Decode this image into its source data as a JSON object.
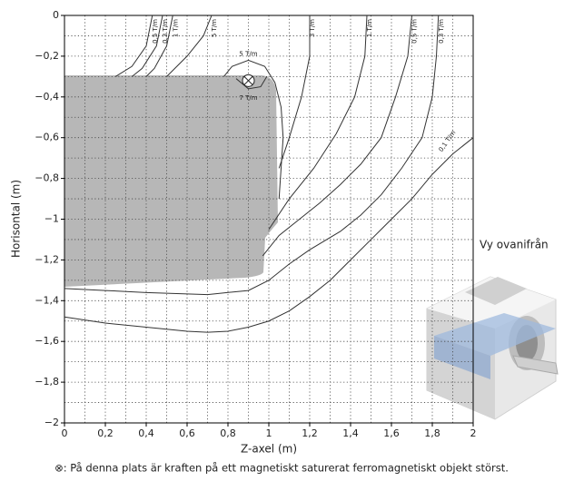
{
  "chart_data": {
    "type": "contour",
    "xlabel": "Z-axel (m)",
    "ylabel": "Horisontal (m)",
    "side_note": "Vy ovanifrån",
    "footnote": "⊗: På denna plats är kraften på ett magnetiskt saturerat ferromagnetiskt objekt störst.",
    "xlim": [
      0,
      2
    ],
    "ylim": [
      -2,
      0
    ],
    "xticks": [
      0,
      {
        "value": 0.2,
        "label": "0,2"
      },
      {
        "value": 0.4,
        "label": "0,4"
      },
      {
        "value": 0.6,
        "label": "0,6"
      },
      {
        "value": 0.8,
        "label": "0,8"
      },
      1,
      {
        "value": 1.2,
        "label": "1,2"
      },
      {
        "value": 1.4,
        "label": "1,4"
      },
      {
        "value": 1.6,
        "label": "1,6"
      },
      {
        "value": 1.8,
        "label": "1,8"
      },
      2
    ],
    "yticks": [
      0,
      {
        "value": -0.2,
        "label": "−0,2"
      },
      {
        "value": -0.4,
        "label": "−0,4"
      },
      {
        "value": -0.6,
        "label": "−0,6"
      },
      {
        "value": -0.8,
        "label": "−0,8"
      },
      {
        "value": -1,
        "label": "−1"
      },
      {
        "value": -1.2,
        "label": "−1,2"
      },
      {
        "value": -1.4,
        "label": "−1,4"
      },
      {
        "value": -1.6,
        "label": "−1,6"
      },
      {
        "value": -1.8,
        "label": "−1,8"
      },
      {
        "value": -2,
        "label": "−2"
      }
    ],
    "grid": true,
    "color": "#333333",
    "marker": {
      "x": 0.9,
      "y": -0.32
    },
    "series": [
      {
        "name": "0,5 T/m",
        "x": [
          0.43,
          0.4,
          0.33,
          0.25
        ],
        "y": [
          0,
          -0.15,
          -0.25,
          -0.3
        ]
      },
      {
        "name": "0,3 T/m",
        "x": [
          0.48,
          0.45,
          0.38,
          0.33
        ],
        "y": [
          0,
          -0.15,
          -0.26,
          -0.3
        ]
      },
      {
        "name": "1 T/m",
        "x": [
          0.53,
          0.5,
          0.44,
          0.4
        ],
        "y": [
          0,
          -0.15,
          -0.26,
          -0.3
        ]
      },
      {
        "name": "5 T/m",
        "x": [
          0.72,
          0.68,
          0.6,
          0.5
        ],
        "y": [
          0,
          -0.1,
          -0.2,
          -0.3
        ]
      },
      {
        "name": "5 T/m",
        "x": [
          0.78,
          0.82,
          0.9,
          0.98,
          1.03,
          1.06,
          1.07,
          1.06,
          1.05
        ],
        "y": [
          -0.3,
          -0.25,
          -0.22,
          -0.25,
          -0.33,
          -0.45,
          -0.6,
          -0.75,
          -0.9
        ]
      },
      {
        "name": "7 T/m",
        "x": [
          0.84,
          0.9,
          0.96,
          0.99
        ],
        "y": [
          -0.31,
          -0.36,
          -0.35,
          -0.3
        ]
      },
      {
        "name": "3 T/m",
        "x": [
          1.2,
          1.2,
          1.16,
          1.1,
          1.05
        ],
        "y": [
          0,
          -0.2,
          -0.4,
          -0.6,
          -0.75
        ]
      },
      {
        "name": "1 T/m",
        "x": [
          1.48,
          1.47,
          1.42,
          1.33,
          1.22,
          1.1,
          1.0
        ],
        "y": [
          0,
          -0.2,
          -0.4,
          -0.58,
          -0.75,
          -0.9,
          -1.05
        ]
      },
      {
        "name": "0,5 T/m",
        "x": [
          1.7,
          1.68,
          1.62,
          1.55,
          1.45,
          1.35,
          1.25,
          1.15,
          1.05,
          0.97
        ],
        "y": [
          0,
          -0.2,
          -0.4,
          -0.6,
          -0.73,
          -0.83,
          -0.92,
          -1.0,
          -1.08,
          -1.18
        ]
      },
      {
        "name": "0,3 T/m",
        "x": [
          1.83,
          1.82,
          1.8,
          1.75,
          1.65,
          1.55,
          1.45,
          1.35,
          1.2,
          1.1,
          1.0,
          0.9,
          0.7,
          0.4,
          0.2,
          0
        ],
        "y": [
          0,
          -0.2,
          -0.4,
          -0.6,
          -0.75,
          -0.88,
          -0.98,
          -1.06,
          -1.15,
          -1.22,
          -1.3,
          -1.35,
          -1.37,
          -1.36,
          -1.35,
          -1.34
        ]
      },
      {
        "name": "0,1 T/m",
        "x": [
          2.0,
          1.9,
          1.8,
          1.7,
          1.6,
          1.5,
          1.4,
          1.3,
          1.2,
          1.1,
          1.0,
          0.9,
          0.8,
          0.7,
          0.6,
          0.4,
          0.2,
          0
        ],
        "y": [
          -0.6,
          -0.68,
          -0.78,
          -0.9,
          -1.0,
          -1.1,
          -1.2,
          -1.3,
          -1.38,
          -1.45,
          -1.5,
          -1.53,
          -1.55,
          -1.555,
          -1.55,
          -1.53,
          -1.51,
          -1.48
        ]
      }
    ]
  }
}
